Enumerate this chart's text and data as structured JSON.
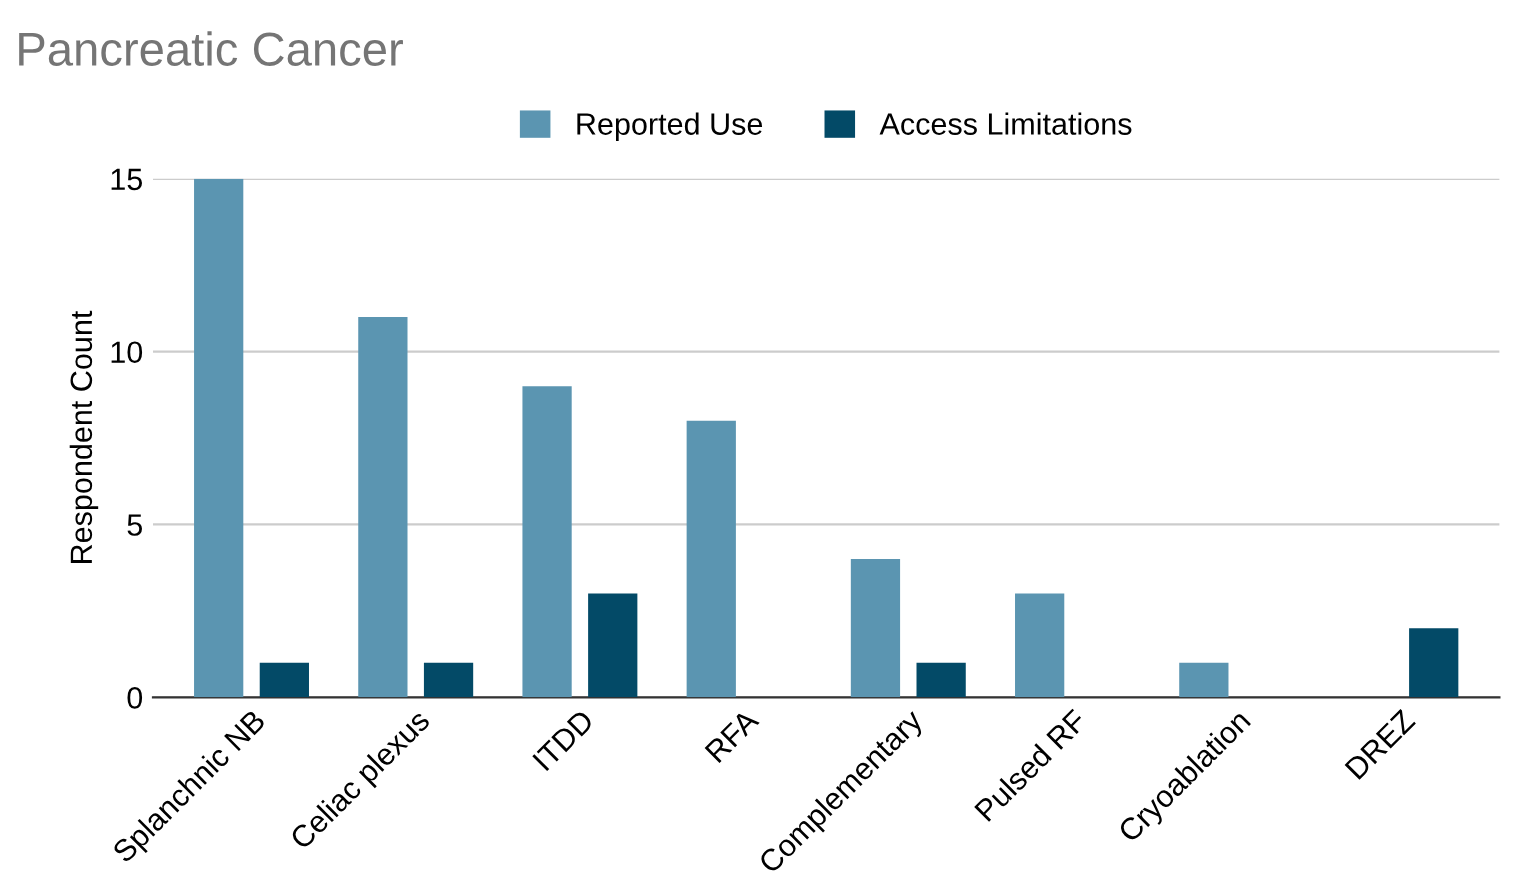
{
  "chart_data": {
    "type": "bar",
    "title": "Pancreatic Cancer",
    "ylabel": "Respondent Count",
    "categories": [
      "Splanchnic NB",
      "Celiac plexus",
      "ITDD",
      "RFA",
      "Complementary",
      "Pulsed RF",
      "Cryoablation",
      "DREZ"
    ],
    "series": [
      {
        "name": "Reported Use",
        "color": "#5b95b1",
        "values": [
          15,
          11,
          9,
          8,
          4,
          3,
          1,
          0
        ]
      },
      {
        "name": "Access Limitations",
        "color": "#034a67",
        "values": [
          1,
          1,
          3,
          0,
          1,
          0,
          0,
          2
        ]
      }
    ],
    "ylim": [
      0,
      15
    ],
    "yticks": [
      0,
      5,
      10,
      15
    ],
    "grid": "y",
    "legend": "top"
  }
}
